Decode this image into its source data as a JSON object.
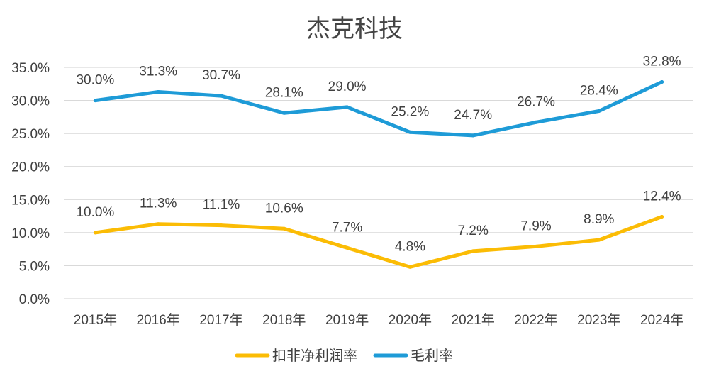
{
  "chart_data": {
    "type": "line",
    "title": "杰克科技",
    "categories": [
      "2015年",
      "2016年",
      "2017年",
      "2018年",
      "2019年",
      "2020年",
      "2021年",
      "2022年",
      "2023年",
      "2024年"
    ],
    "ylim": [
      0,
      35
    ],
    "ytick_values": [
      0,
      5,
      10,
      15,
      20,
      25,
      30,
      35
    ],
    "ytick_labels": [
      "0.0%",
      "5.0%",
      "10.0%",
      "15.0%",
      "20.0%",
      "25.0%",
      "30.0%",
      "35.0%"
    ],
    "series": [
      {
        "name": "毛利率",
        "color": "#1e9bd7",
        "values": [
          30.0,
          31.3,
          30.7,
          28.1,
          29.0,
          25.2,
          24.7,
          26.7,
          28.4,
          32.8
        ],
        "labels": [
          "30.0%",
          "31.3%",
          "30.7%",
          "28.1%",
          "29.0%",
          "25.2%",
          "24.7%",
          "26.7%",
          "28.4%",
          "32.8%"
        ]
      },
      {
        "name": "扣非净利润率",
        "color": "#fbbc05",
        "values": [
          10.0,
          11.3,
          11.1,
          10.6,
          7.7,
          4.8,
          7.2,
          7.9,
          8.9,
          12.4
        ],
        "labels": [
          "10.0%",
          "11.3%",
          "11.1%",
          "10.6%",
          "7.7%",
          "4.8%",
          "7.2%",
          "7.9%",
          "8.9%",
          "12.4%"
        ]
      }
    ],
    "legend": [
      "扣非净利润率",
      "毛利率"
    ],
    "legend_position": "bottom",
    "grid": true
  }
}
